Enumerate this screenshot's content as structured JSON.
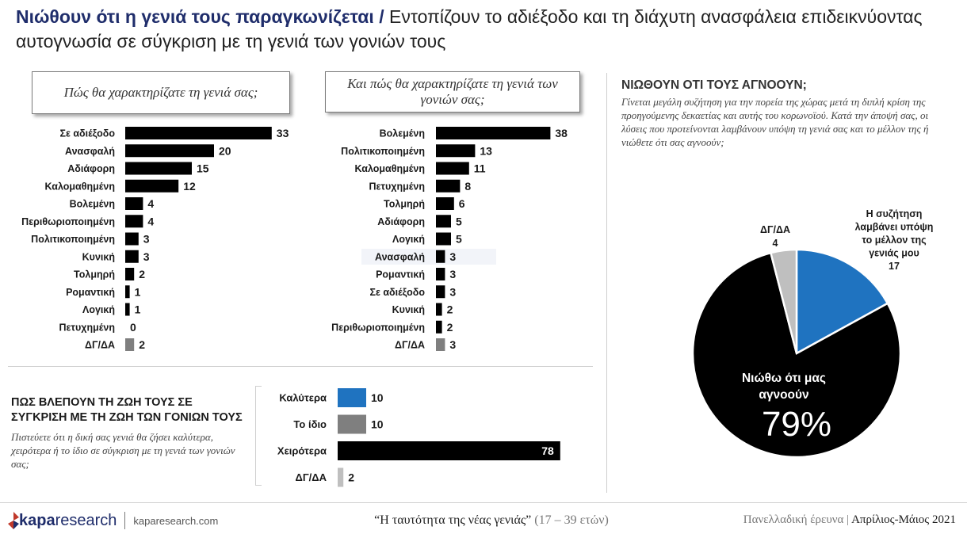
{
  "title": {
    "bold": "Νιώθουν ότι η γενιά τους παραγκωνίζεται",
    "separator": "/",
    "rest": "Εντοπίζουν το αδιέξοδο και τη διάχυτη ανασφάλεια επιδεικνύοντας αυτογνωσία σε σύγκριση με τη γενιά των γονιών τους"
  },
  "q1": {
    "label": "Πώς θα χαρακτηρίζατε τη γενιά σας;"
  },
  "q2": {
    "label": "Και πώς θα χαρακτηρίζατε τη γενιά των γονιών σας;"
  },
  "section_right": {
    "title": "ΝΙΩΘΟΥΝ ΟΤΙ ΤΟΥΣ ΑΓΝΟΟΥΝ;",
    "subtitle": "Γίνεται μεγάλη συζήτηση για την πορεία της χώρας μετά τη διπλή κρίση της προηγούμενης δεκαετίας και αυτής του κορωνοϊού. Κατά την άποψή σας, οι λύσεις που προτείνονται λαμβάνουν υπόψη τη γενιά σας και το μέλλον της ή νιώθετε ότι σας αγνοούν;"
  },
  "section_bottom": {
    "title": "ΠΩΣ ΒΛΕΠΟΥΝ ΤΗ ΖΩΗ ΤΟΥΣ ΣΕ ΣΥΓΚΡΙΣΗ ΜΕ ΤΗ ΖΩΗ ΤΩΝ ΓΟΝΙΩΝ ΤΟΥΣ",
    "subtitle": "Πιστεύετε ότι η δική σας γενιά θα ζήσει καλύτερα, χειρότερα ή το ίδιο σε σύγκριση με τη γενιά των γονιών σας;"
  },
  "footer": {
    "logo_bold": "kapa",
    "logo_rest": "research",
    "url": "kaparesearch.com",
    "survey_title": "“Η ταυτότητα της νέας γενιάς”",
    "survey_ages": "(17 – 39 ετών)",
    "survey_type": "Πανελλαδική έρευνα |",
    "survey_date": "Απρίλιος-Μάιος 2021"
  },
  "colors": {
    "black": "#000000",
    "gray": "#7f7f7f",
    "light_gray": "#bfbfbf",
    "blue": "#1f73c0"
  },
  "chart_data": [
    {
      "type": "bar",
      "orientation": "horizontal",
      "title": "Πώς θα χαρακτηρίζατε τη γενιά σας;",
      "categories": [
        "Σε αδιέξοδο",
        "Ανασφαλή",
        "Αδιάφορη",
        "Καλομαθημένη",
        "Βολεμένη",
        "Περιθωριοποιημένη",
        "Πολιτικοποιημένη",
        "Κυνική",
        "Τολμηρή",
        "Ρομαντική",
        "Λογική",
        "Πετυχημένη",
        "ΔΓ/ΔΑ"
      ],
      "values": [
        33,
        20,
        15,
        12,
        4,
        4,
        3,
        3,
        2,
        1,
        1,
        0,
        2
      ],
      "bar_colors": [
        "#000000",
        "#000000",
        "#000000",
        "#000000",
        "#000000",
        "#000000",
        "#000000",
        "#000000",
        "#000000",
        "#000000",
        "#000000",
        "#000000",
        "#7f7f7f"
      ]
    },
    {
      "type": "bar",
      "orientation": "horizontal",
      "title": "Και πώς θα χαρακτηρίζατε τη γενιά των γονιών σας;",
      "categories": [
        "Βολεμένη",
        "Πολιτικοποιημένη",
        "Καλομαθημένη",
        "Πετυχημένη",
        "Τολμηρή",
        "Αδιάφορη",
        "Λογική",
        "Ανασφαλή",
        "Ρομαντική",
        "Σε αδιέξοδο",
        "Κυνική",
        "Περιθωριοποιημένη",
        "ΔΓ/ΔΑ"
      ],
      "values": [
        38,
        13,
        11,
        8,
        6,
        5,
        5,
        3,
        3,
        3,
        2,
        2,
        3
      ],
      "bar_colors": [
        "#000000",
        "#000000",
        "#000000",
        "#000000",
        "#000000",
        "#000000",
        "#000000",
        "#000000",
        "#000000",
        "#000000",
        "#000000",
        "#000000",
        "#7f7f7f"
      ]
    },
    {
      "type": "bar",
      "orientation": "horizontal",
      "title": "ΠΩΣ ΒΛΕΠΟΥΝ ΤΗ ΖΩΗ ΤΟΥΣ ΣΕ ΣΥΓΚΡΙΣΗ ΜΕ ΤΗ ΖΩΗ ΤΩΝ ΓΟΝΙΩΝ ΤΟΥΣ",
      "categories": [
        "Καλύτερα",
        "Το ίδιο",
        "Χειρότερα",
        "ΔΓ/ΔΑ"
      ],
      "values": [
        10,
        10,
        78,
        2
      ],
      "bar_colors": [
        "#1f73c0",
        "#7f7f7f",
        "#000000",
        "#bfbfbf"
      ]
    },
    {
      "type": "pie",
      "title": "ΝΙΩΘΟΥΝ ΟΤΙ ΤΟΥΣ ΑΓΝΟΟΥΝ;",
      "slices": [
        {
          "label": "Η συζήτηση λαμβάνει υπόψη το μέλλον της γενιάς μου",
          "value": 17,
          "color": "#1f73c0"
        },
        {
          "label": "Νιώθω ότι μας αγνοούν",
          "value": 79,
          "display": "79%",
          "color": "#000000"
        },
        {
          "label": "ΔΓ/ΔΑ",
          "value": 4,
          "color": "#bfbfbf"
        }
      ]
    }
  ]
}
